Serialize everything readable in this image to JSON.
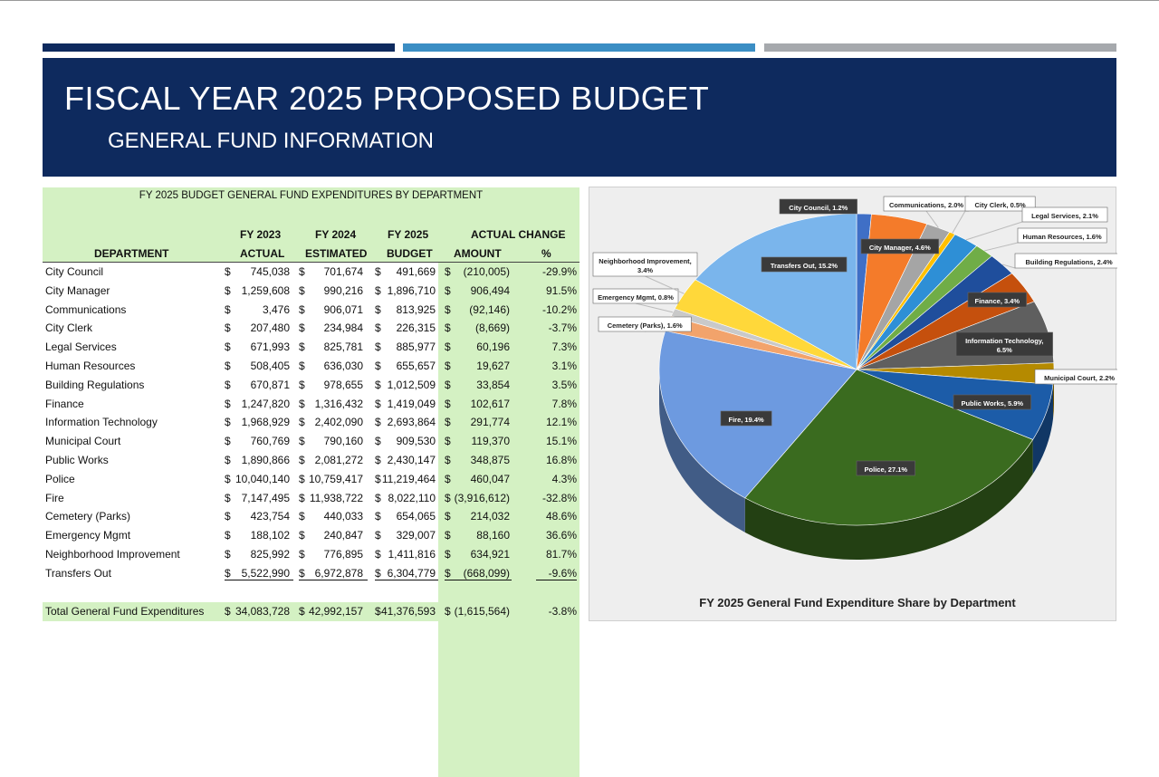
{
  "header": {
    "title": "FISCAL YEAR 2025 PROPOSED BUDGET",
    "subtitle": "GENERAL FUND INFORMATION"
  },
  "table": {
    "title": "FY 2025 BUDGET GENERAL FUND EXPENDITURES BY DEPARTMENT",
    "headers": {
      "fy2023_top": "FY 2023",
      "fy2023_bottom": "ACTUAL",
      "fy2024_top": "FY 2024",
      "fy2024_bottom": "ESTIMATED",
      "fy2025_top": "FY 2025",
      "fy2025_bottom": "BUDGET",
      "change_top": "ACTUAL CHANGE",
      "amount": "AMOUNT",
      "pct": "%",
      "department": "DEPARTMENT"
    },
    "currency": "$",
    "rows": [
      {
        "dept": "City Council",
        "fy2023": "745,038",
        "fy2024": "701,674",
        "fy2025": "491,669",
        "amount": "(210,005)",
        "pct": "-29.9%"
      },
      {
        "dept": "City Manager",
        "fy2023": "1,259,608",
        "fy2024": "990,216",
        "fy2025": "1,896,710",
        "amount": "906,494",
        "pct": "91.5%"
      },
      {
        "dept": "Communications",
        "fy2023": "3,476",
        "fy2024": "906,071",
        "fy2025": "813,925",
        "amount": "(92,146)",
        "pct": "-10.2%"
      },
      {
        "dept": "City Clerk",
        "fy2023": "207,480",
        "fy2024": "234,984",
        "fy2025": "226,315",
        "amount": "(8,669)",
        "pct": "-3.7%"
      },
      {
        "dept": "Legal Services",
        "fy2023": "671,993",
        "fy2024": "825,781",
        "fy2025": "885,977",
        "amount": "60,196",
        "pct": "7.3%"
      },
      {
        "dept": "Human Resources",
        "fy2023": "508,405",
        "fy2024": "636,030",
        "fy2025": "655,657",
        "amount": "19,627",
        "pct": "3.1%"
      },
      {
        "dept": "Building Regulations",
        "fy2023": "670,871",
        "fy2024": "978,655",
        "fy2025": "1,012,509",
        "amount": "33,854",
        "pct": "3.5%"
      },
      {
        "dept": "Finance",
        "fy2023": "1,247,820",
        "fy2024": "1,316,432",
        "fy2025": "1,419,049",
        "amount": "102,617",
        "pct": "7.8%"
      },
      {
        "dept": "Information Technology",
        "fy2023": "1,968,929",
        "fy2024": "2,402,090",
        "fy2025": "2,693,864",
        "amount": "291,774",
        "pct": "12.1%"
      },
      {
        "dept": "Municipal Court",
        "fy2023": "760,769",
        "fy2024": "790,160",
        "fy2025": "909,530",
        "amount": "119,370",
        "pct": "15.1%"
      },
      {
        "dept": "Public Works",
        "fy2023": "1,890,866",
        "fy2024": "2,081,272",
        "fy2025": "2,430,147",
        "amount": "348,875",
        "pct": "16.8%"
      },
      {
        "dept": "Police",
        "fy2023": "10,040,140",
        "fy2024": "10,759,417",
        "fy2025": "11,219,464",
        "amount": "460,047",
        "pct": "4.3%"
      },
      {
        "dept": "Fire",
        "fy2023": "7,147,495",
        "fy2024": "11,938,722",
        "fy2025": "8,022,110",
        "amount": "(3,916,612)",
        "pct": "-32.8%"
      },
      {
        "dept": "Cemetery (Parks)",
        "fy2023": "423,754",
        "fy2024": "440,033",
        "fy2025": "654,065",
        "amount": "214,032",
        "pct": "48.6%"
      },
      {
        "dept": "Emergency Mgmt",
        "fy2023": "188,102",
        "fy2024": "240,847",
        "fy2025": "329,007",
        "amount": "88,160",
        "pct": "36.6%"
      },
      {
        "dept": "Neighborhood Improvement",
        "fy2023": "825,992",
        "fy2024": "776,895",
        "fy2025": "1,411,816",
        "amount": "634,921",
        "pct": "81.7%"
      },
      {
        "dept": "Transfers Out",
        "fy2023": "5,522,990",
        "fy2024": "6,972,878",
        "fy2025": "6,304,779",
        "amount": "(668,099)",
        "pct": "-9.6%"
      }
    ],
    "total": {
      "dept": "Total General Fund Expenditures",
      "fy2023": "34,083,728",
      "fy2024": "42,992,157",
      "fy2025": "41,376,593",
      "amount": "(1,615,564)",
      "pct": "-3.8%"
    }
  },
  "chart_data": {
    "type": "pie",
    "title": "FY 2025 General Fund Expenditure Share by Department",
    "categories": [
      "City Council",
      "City Manager",
      "Communications",
      "City Clerk",
      "Legal Services",
      "Human Resources",
      "Building Regulations",
      "Finance",
      "Information Technology",
      "Municipal Court",
      "Public Works",
      "Police",
      "Fire",
      "Cemetery (Parks)",
      "Emergency Mgmt",
      "Neighborhood Improvement",
      "Transfers Out"
    ],
    "values": [
      1.2,
      4.6,
      2.0,
      0.5,
      2.1,
      1.6,
      2.4,
      3.4,
      6.5,
      2.2,
      5.9,
      27.1,
      19.4,
      1.6,
      0.8,
      3.4,
      15.2
    ],
    "labels": [
      "City Council, 1.2%",
      "City Manager, 4.6%",
      "Communications, 2.0%",
      "City Clerk, 0.5%",
      "Legal Services, 2.1%",
      "Human Resources, 1.6%",
      "Building Regulations, 2.4%",
      "Finance, 3.4%",
      "Information Technology, 6.5%",
      "Municipal Court, 2.2%",
      "Public Works, 5.9%",
      "Police, 27.1%",
      "Fire, 19.4%",
      "Cemetery (Parks), 1.6%",
      "Emergency Mgmt, 0.8%",
      "Neighborhood Improvement, 3.4%",
      "Transfers Out, 15.2%"
    ],
    "colors": [
      "#3f6fc6",
      "#f47b2a",
      "#a5a5a5",
      "#ffc000",
      "#2e8fd6",
      "#70ad47",
      "#1f4e9c",
      "#c5500d",
      "#5f5f5f",
      "#b58a00",
      "#1c5ca8",
      "#3a6b1f",
      "#6d9ae0",
      "#f2a36b",
      "#c9c9c9",
      "#ffd83a",
      "#7ab5ec"
    ],
    "start_angle_deg": 90,
    "direction": "clockwise",
    "style": "3d"
  }
}
